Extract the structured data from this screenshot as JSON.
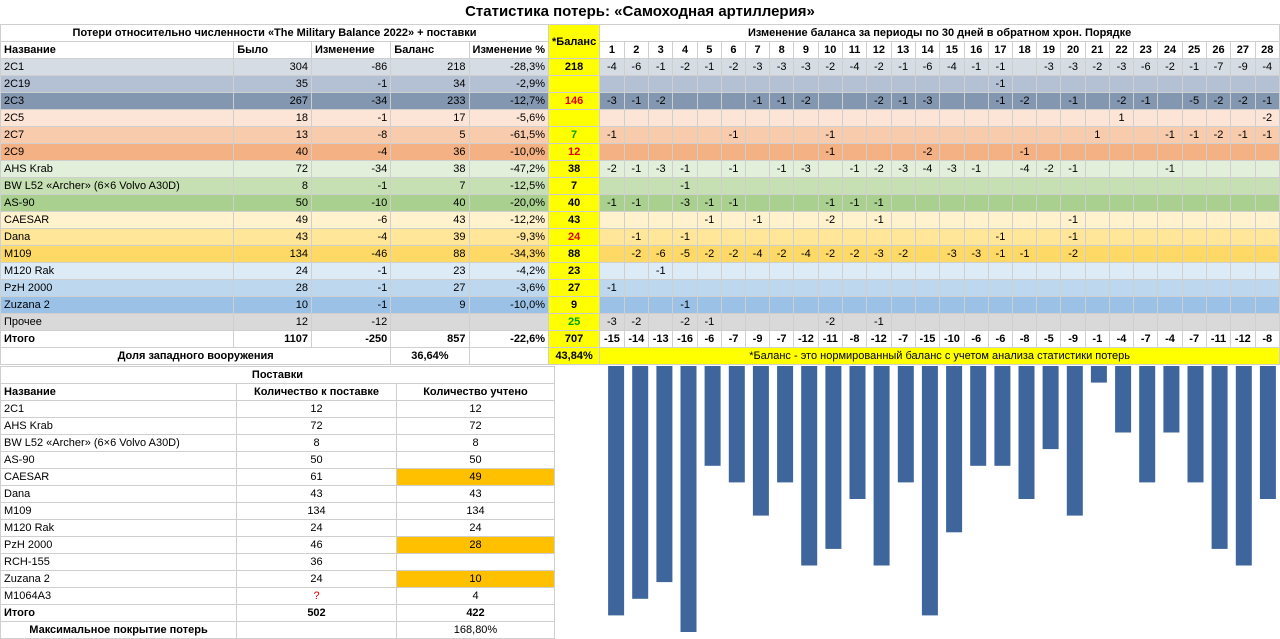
{
  "title": "Статистика потерь: «Самоходная артиллерия»",
  "main_group_left": "Потери относительно численности «The Military Balance 2022» + поставки",
  "main_group_right": "Изменение баланса за периоды по 30 дней в обратном хрон. Порядке",
  "headers": [
    "Название",
    "Было",
    "Изменение",
    "Баланс",
    "Изменение %",
    "*Баланс"
  ],
  "periods": [
    "1",
    "2",
    "3",
    "4",
    "5",
    "6",
    "7",
    "8",
    "9",
    "10",
    "11",
    "12",
    "13",
    "14",
    "15",
    "16",
    "17",
    "18",
    "19",
    "20",
    "21",
    "22",
    "23",
    "24",
    "25",
    "26",
    "27",
    "28"
  ],
  "rows": [
    {
      "name": "2С1",
      "was": "304",
      "chg": "-86",
      "bal": "218",
      "pct": "-28,3%",
      "nb": "218",
      "nbColor": "#000000",
      "bg": "#d6dce4",
      "p": [
        "-4",
        "-6",
        "-1",
        "-2",
        "-1",
        "-2",
        "-3",
        "-3",
        "-3",
        "-2",
        "-4",
        "-2",
        "-1",
        "-6",
        "-4",
        "-1",
        "-1",
        "",
        "-3",
        "-3",
        "-2",
        "-3",
        "-6",
        "-2",
        "-1",
        "-7",
        "-9",
        "-4"
      ]
    },
    {
      "name": "2С19",
      "was": "35",
      "chg": "-1",
      "bal": "34",
      "pct": "-2,9%",
      "nb": "",
      "nbColor": "#000000",
      "bg": "#b4c0d4",
      "p": [
        "",
        "",
        "",
        "",
        "",
        "",
        "",
        "",
        "",
        "",
        "",
        "",
        "",
        "",
        "",
        "",
        "-1",
        "",
        "",
        "",
        "",
        "",
        "",
        "",
        "",
        "",
        "",
        ""
      ]
    },
    {
      "name": "2С3",
      "was": "267",
      "chg": "-34",
      "bal": "233",
      "pct": "-12,7%",
      "nb": "146",
      "nbColor": "#e00000",
      "bg": "#8497b0",
      "p": [
        "-3",
        "-1",
        "-2",
        "",
        "",
        "",
        "-1",
        "-1",
        "-2",
        "",
        "",
        "-2",
        "-1",
        "-3",
        "",
        "",
        "-1",
        "-2",
        "",
        "-1",
        "",
        "-2",
        "-1",
        "",
        "-5",
        "-2",
        "-2",
        "-1"
      ]
    },
    {
      "name": "2С5",
      "was": "18",
      "chg": "-1",
      "bal": "17",
      "pct": "-5,6%",
      "nb": "",
      "nbColor": "#000000",
      "bg": "#fce4d6",
      "p": [
        "",
        "",
        "",
        "",
        "",
        "",
        "",
        "",
        "",
        "",
        "",
        "",
        "",
        "",
        "",
        "",
        "",
        "",
        "",
        "",
        "",
        "1",
        "",
        "",
        "",
        "",
        "",
        "-2"
      ]
    },
    {
      "name": "2С7",
      "was": "13",
      "chg": "-8",
      "bal": "5",
      "pct": "-61,5%",
      "nb": "7",
      "nbColor": "#00a000",
      "bg": "#f8cbad",
      "p": [
        "-1",
        "",
        "",
        "",
        "",
        "-1",
        "",
        "",
        "",
        "-1",
        "",
        "",
        "",
        "",
        "",
        "",
        "",
        "",
        "",
        "",
        "1",
        "",
        "",
        "-1",
        "-1",
        "-2",
        "-1",
        "-1"
      ]
    },
    {
      "name": "2С9",
      "was": "40",
      "chg": "-4",
      "bal": "36",
      "pct": "-10,0%",
      "nb": "12",
      "nbColor": "#e00000",
      "bg": "#f4b183",
      "p": [
        "",
        "",
        "",
        "",
        "",
        "",
        "",
        "",
        "",
        "-1",
        "",
        "",
        "",
        "-2",
        "",
        "",
        "",
        "-1",
        "",
        "",
        "",
        "",
        "",
        "",
        "",
        "",
        "",
        ""
      ]
    },
    {
      "name": "AHS Krab",
      "was": "72",
      "chg": "-34",
      "bal": "38",
      "pct": "-47,2%",
      "nb": "38",
      "nbColor": "#000000",
      "bg": "#e2efda",
      "p": [
        "-2",
        "-1",
        "-3",
        "-1",
        "",
        "-1",
        "",
        "-1",
        "-3",
        "",
        "-1",
        "-2",
        "-3",
        "-4",
        "-3",
        "-1",
        "",
        "-4",
        "-2",
        "-1",
        "",
        "",
        "",
        "-1",
        "",
        "",
        "",
        ""
      ]
    },
    {
      "name": "BW L52 «Archer» (6×6 Volvo A30D)",
      "was": "8",
      "chg": "-1",
      "bal": "7",
      "pct": "-12,5%",
      "nb": "7",
      "nbColor": "#000000",
      "bg": "#c6e0b4",
      "p": [
        "",
        "",
        "",
        "-1",
        "",
        "",
        "",
        "",
        "",
        "",
        "",
        "",
        "",
        "",
        "",
        "",
        "",
        "",
        "",
        "",
        "",
        "",
        "",
        "",
        "",
        "",
        "",
        ""
      ]
    },
    {
      "name": "AS-90",
      "was": "50",
      "chg": "-10",
      "bal": "40",
      "pct": "-20,0%",
      "nb": "40",
      "nbColor": "#000000",
      "bg": "#a9d08e",
      "p": [
        "-1",
        "-1",
        "",
        "-3",
        "-1",
        "-1",
        "",
        "",
        "",
        "-1",
        "-1",
        "-1",
        "",
        "",
        "",
        "",
        "",
        "",
        "",
        "",
        "",
        "",
        "",
        "",
        "",
        "",
        "",
        ""
      ]
    },
    {
      "name": "CAESAR",
      "was": "49",
      "chg": "-6",
      "bal": "43",
      "pct": "-12,2%",
      "nb": "43",
      "nbColor": "#000000",
      "bg": "#fff2cc",
      "p": [
        "",
        "",
        "",
        "",
        "-1",
        "",
        "-1",
        "",
        "",
        "-2",
        "",
        "-1",
        "",
        "",
        "",
        "",
        "",
        "",
        "",
        "-1",
        "",
        "",
        "",
        "",
        "",
        "",
        "",
        ""
      ]
    },
    {
      "name": "Dana",
      "was": "43",
      "chg": "-4",
      "bal": "39",
      "pct": "-9,3%",
      "nb": "24",
      "nbColor": "#e00000",
      "bg": "#ffe699",
      "p": [
        "",
        "-1",
        "",
        "-1",
        "",
        "",
        "",
        "",
        "",
        "",
        "",
        "",
        "",
        "",
        "",
        "",
        "-1",
        "",
        "",
        "-1",
        "",
        "",
        "",
        "",
        "",
        "",
        "",
        ""
      ]
    },
    {
      "name": "M109",
      "was": "134",
      "chg": "-46",
      "bal": "88",
      "pct": "-34,3%",
      "nb": "88",
      "nbColor": "#000000",
      "bg": "#ffd966",
      "p": [
        "",
        "-2",
        "-6",
        "-5",
        "-2",
        "-2",
        "-4",
        "-2",
        "-4",
        "-2",
        "-2",
        "-3",
        "-2",
        "",
        "-3",
        "-3",
        "-1",
        "-1",
        "",
        "-2",
        "",
        "",
        "",
        "",
        "",
        "",
        "",
        ""
      ]
    },
    {
      "name": "M120 Rak",
      "was": "24",
      "chg": "-1",
      "bal": "23",
      "pct": "-4,2%",
      "nb": "23",
      "nbColor": "#000000",
      "bg": "#ddebf7",
      "p": [
        "",
        "",
        "-1",
        "",
        "",
        "",
        "",
        "",
        "",
        "",
        "",
        "",
        "",
        "",
        "",
        "",
        "",
        "",
        "",
        "",
        "",
        "",
        "",
        "",
        "",
        "",
        "",
        ""
      ]
    },
    {
      "name": "PzH 2000",
      "was": "28",
      "chg": "-1",
      "bal": "27",
      "pct": "-3,6%",
      "nb": "27",
      "nbColor": "#000000",
      "bg": "#bdd7ee",
      "p": [
        "-1",
        "",
        "",
        "",
        "",
        "",
        "",
        "",
        "",
        "",
        "",
        "",
        "",
        "",
        "",
        "",
        "",
        "",
        "",
        "",
        "",
        "",
        "",
        "",
        "",
        "",
        "",
        ""
      ]
    },
    {
      "name": "Zuzana 2",
      "was": "10",
      "chg": "-1",
      "bal": "9",
      "pct": "-10,0%",
      "nb": "9",
      "nbColor": "#000000",
      "bg": "#9bc2e6",
      "p": [
        "",
        "",
        "",
        "-1",
        "",
        "",
        "",
        "",
        "",
        "",
        "",
        "",
        "",
        "",
        "",
        "",
        "",
        "",
        "",
        "",
        "",
        "",
        "",
        "",
        "",
        "",
        "",
        ""
      ]
    },
    {
      "name": "Прочее",
      "was": "12",
      "chg": "-12",
      "bal": "",
      "pct": "",
      "nb": "25",
      "nbColor": "#00a000",
      "bg": "#d9d9d9",
      "p": [
        "-3",
        "-2",
        "",
        "-2",
        "-1",
        "",
        "",
        "",
        "",
        "-2",
        "",
        "-1",
        "",
        "",
        "",
        "",
        "",
        "",
        "",
        "",
        "",
        "",
        "",
        "",
        "",
        "",
        "",
        ""
      ]
    }
  ],
  "total": {
    "name": "Итого",
    "was": "1107",
    "chg": "-250",
    "bal": "857",
    "pct": "-22,6%",
    "nb": "707",
    "p": [
      "-15",
      "-14",
      "-13",
      "-16",
      "-6",
      "-7",
      "-9",
      "-7",
      "-12",
      "-11",
      "-8",
      "-12",
      "-7",
      "-15",
      "-10",
      "-6",
      "-6",
      "-8",
      "-5",
      "-9",
      "-1",
      "-4",
      "-7",
      "-4",
      "-7",
      "-11",
      "-12",
      "-8"
    ]
  },
  "western_label": "Доля западного вооружения",
  "western_pct": "36,64%",
  "western_norm_pct": "43,84%",
  "note": "*Баланс - это нормированный баланс с учетом анализа статистики потерь",
  "supplies_title": "Поставки",
  "supplies_headers": [
    "Название",
    "Количество к поставке",
    "Количество учтено"
  ],
  "supplies": [
    {
      "name": "2С1",
      "plan": "12",
      "counted": "12",
      "hl": false
    },
    {
      "name": "AHS Krab",
      "plan": "72",
      "counted": "72",
      "hl": false
    },
    {
      "name": "BW L52 «Archer» (6×6 Volvo A30D)",
      "plan": "8",
      "counted": "8",
      "hl": false
    },
    {
      "name": "AS-90",
      "plan": "50",
      "counted": "50",
      "hl": false
    },
    {
      "name": "CAESAR",
      "plan": "61",
      "counted": "49",
      "hl": true
    },
    {
      "name": "Dana",
      "plan": "43",
      "counted": "43",
      "hl": false
    },
    {
      "name": "M109",
      "plan": "134",
      "counted": "134",
      "hl": false
    },
    {
      "name": "M120 Rak",
      "plan": "24",
      "counted": "24",
      "hl": false
    },
    {
      "name": "PzH 2000",
      "plan": "46",
      "counted": "28",
      "hl": true
    },
    {
      "name": "RCH-155",
      "plan": "36",
      "counted": "",
      "hl": false
    },
    {
      "name": "Zuzana 2",
      "plan": "24",
      "counted": "10",
      "hl": true
    },
    {
      "name": "M1064A3",
      "plan": "?",
      "counted": "4",
      "hl": false
    }
  ],
  "supplies_total": {
    "name": "Итого",
    "plan": "502",
    "counted": "422"
  },
  "max_coverage_label": "Максимальное покрытие потерь",
  "max_coverage_value": "168,80%",
  "chart_data": {
    "type": "bar",
    "categories": [
      "1",
      "2",
      "3",
      "4",
      "5",
      "6",
      "7",
      "8",
      "9",
      "10",
      "11",
      "12",
      "13",
      "14",
      "15",
      "16",
      "17",
      "18",
      "19",
      "20",
      "21",
      "22",
      "23",
      "24",
      "25",
      "26",
      "27",
      "28"
    ],
    "values": [
      -15,
      -14,
      -13,
      -16,
      -6,
      -7,
      -9,
      -7,
      -12,
      -11,
      -8,
      -12,
      -7,
      -15,
      -10,
      -6,
      -6,
      -8,
      -5,
      -9,
      -1,
      -4,
      -7,
      -4,
      -7,
      -11,
      -12,
      -8
    ],
    "ylim": [
      -16,
      0
    ],
    "bar_color": "#3e669c",
    "grid": false
  }
}
